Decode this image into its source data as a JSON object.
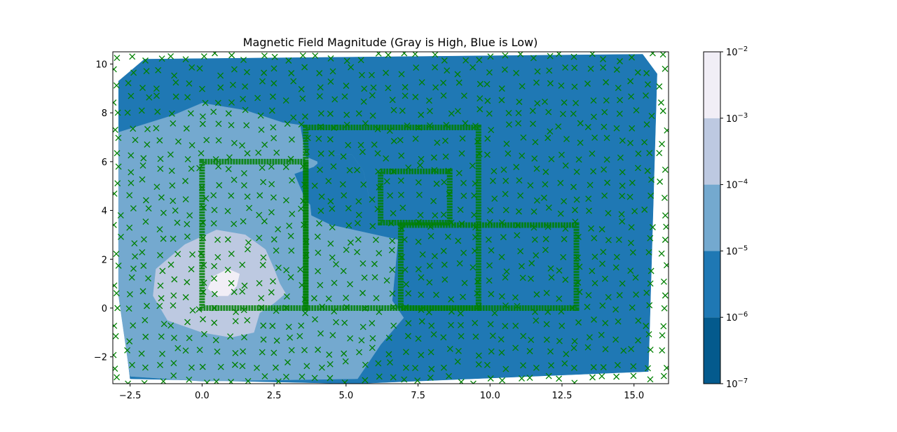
{
  "chart_data": {
    "type": "contourf",
    "title": "Magnetic Field Magnitude (Gray is High, Blue is Low)",
    "xlabel": "",
    "ylabel": "",
    "xlim": [
      -3.1,
      16.2
    ],
    "ylim": [
      -3.1,
      10.5
    ],
    "xticks": [
      -2.5,
      0.0,
      2.5,
      5.0,
      7.5,
      10.0,
      12.5,
      15.0
    ],
    "xtick_labels": [
      "−2.5",
      "0.0",
      "2.5",
      "5.0",
      "7.5",
      "10.0",
      "12.5",
      "15.0"
    ],
    "yticks": [
      -2,
      0,
      2,
      4,
      6,
      8,
      10
    ],
    "ytick_labels": [
      "−2",
      "0",
      "2",
      "4",
      "6",
      "8",
      "10"
    ],
    "grid": false,
    "colorbar": {
      "scale": "log",
      "ticks": [
        1e-07,
        1e-06,
        1e-05,
        0.0001,
        0.001,
        0.01
      ],
      "tick_bases": [
        "10",
        "10",
        "10",
        "10",
        "10",
        "10"
      ],
      "tick_exponents": [
        "−7",
        "−6",
        "−5",
        "−4",
        "−3",
        "−2"
      ],
      "levels": [
        {
          "range": [
            1e-07,
            1e-06
          ],
          "color": "#045a8d"
        },
        {
          "range": [
            1e-06,
            1e-05
          ],
          "color": "#1f78b4"
        },
        {
          "range": [
            1e-05,
            0.0001
          ],
          "color": "#74a9cf"
        },
        {
          "range": [
            0.0001,
            0.001
          ],
          "color": "#bdc9e1"
        },
        {
          "range": [
            0.001,
            0.01
          ],
          "color": "#f1eef6"
        }
      ]
    },
    "regions": [
      {
        "level": "1e-6 to 1e-5",
        "color": "#1f78b4",
        "polygon": [
          [
            -2.9,
            9.3
          ],
          [
            -2.0,
            10.2
          ],
          [
            15.3,
            10.4
          ],
          [
            15.8,
            9.6
          ],
          [
            15.5,
            -2.6
          ],
          [
            5.3,
            -3.1
          ],
          [
            -2.5,
            -2.9
          ],
          [
            -2.9,
            1.0
          ]
        ]
      },
      {
        "level": "1e-5 to 1e-4",
        "color": "#74a9cf",
        "polygon": [
          [
            -2.9,
            7.2
          ],
          [
            -1.0,
            7.9
          ],
          [
            0.0,
            8.4
          ],
          [
            1.5,
            8.1
          ],
          [
            2.8,
            7.6
          ],
          [
            3.4,
            7.5
          ],
          [
            3.6,
            6.2
          ],
          [
            4.0,
            6.0
          ],
          [
            4.0,
            4.2
          ],
          [
            5.8,
            4.1
          ],
          [
            5.8,
            4.5
          ],
          [
            5.6,
            5.6
          ],
          [
            5.2,
            6.3
          ],
          [
            4.4,
            6.3
          ],
          [
            3.9,
            5.8
          ],
          [
            3.2,
            5.5
          ],
          [
            3.6,
            4.4
          ],
          [
            4.5,
            3.4
          ],
          [
            6.8,
            2.8
          ],
          [
            6.7,
            1.5
          ],
          [
            6.6,
            0.3
          ],
          [
            7.0,
            -0.4
          ],
          [
            6.2,
            -1.5
          ],
          [
            5.4,
            -2.9
          ],
          [
            0.0,
            -3.0
          ],
          [
            -2.5,
            -2.8
          ],
          [
            -2.9,
            0.5
          ]
        ]
      },
      {
        "level": "1e-6 to 1e-5",
        "color": "#1f78b4",
        "polygon": [
          [
            3.7,
            4.9
          ],
          [
            3.9,
            5.8
          ],
          [
            4.4,
            6.3
          ],
          [
            5.2,
            6.3
          ],
          [
            5.6,
            5.6
          ],
          [
            5.8,
            4.5
          ],
          [
            5.9,
            4.0
          ],
          [
            6.5,
            3.3
          ],
          [
            4.5,
            3.4
          ],
          [
            3.8,
            3.8
          ]
        ]
      },
      {
        "level": "1e-4 to 1e-3",
        "color": "#bdc9e1",
        "polygon": [
          [
            -1.6,
            1.6
          ],
          [
            -0.6,
            2.6
          ],
          [
            0.5,
            3.2
          ],
          [
            1.5,
            3.0
          ],
          [
            2.2,
            2.4
          ],
          [
            2.5,
            1.6
          ],
          [
            2.7,
            1.0
          ],
          [
            2.9,
            0.6
          ],
          [
            2.5,
            0.2
          ],
          [
            2.0,
            -0.2
          ],
          [
            1.8,
            -1.0
          ],
          [
            1.0,
            -1.2
          ],
          [
            0.0,
            -1.0
          ],
          [
            -1.2,
            -0.5
          ],
          [
            -1.7,
            0.5
          ]
        ]
      },
      {
        "level": "1e-3 to 1e-2",
        "color": "#f1eef6",
        "polygon": [
          [
            0.2,
            0.8
          ],
          [
            0.4,
            1.3
          ],
          [
            0.9,
            1.6
          ],
          [
            1.3,
            1.4
          ],
          [
            1.2,
            0.9
          ],
          [
            0.9,
            0.5
          ],
          [
            0.5,
            0.5
          ]
        ]
      }
    ],
    "coils": [
      {
        "x": [
          0.0,
          3.6
        ],
        "y": [
          0.0,
          6.0
        ]
      },
      {
        "x": [
          3.6,
          9.6
        ],
        "y": [
          0.0,
          7.4
        ]
      },
      {
        "x": [
          6.2,
          8.6
        ],
        "y": [
          3.5,
          5.6
        ]
      },
      {
        "x": [
          6.9,
          13.0
        ],
        "y": [
          0.0,
          3.4
        ]
      }
    ],
    "scatter": {
      "marker": "x",
      "color": "#008000"
    }
  }
}
